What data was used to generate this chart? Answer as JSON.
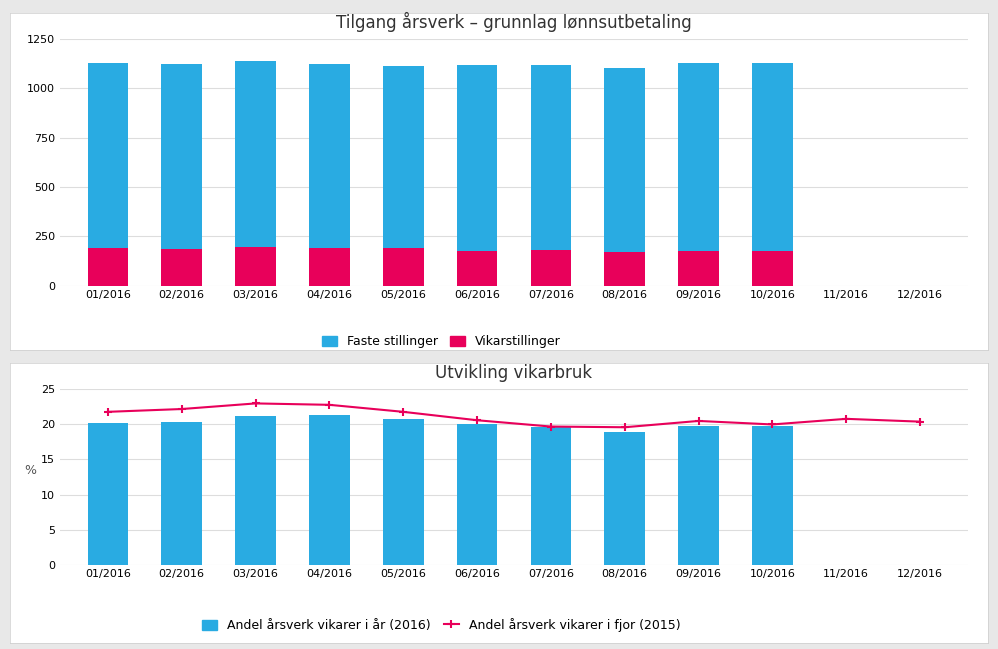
{
  "chart1": {
    "title": "Tilgang årsverk – grunnlag lønnsutbetaling",
    "categories": [
      "01/2016",
      "02/2016",
      "03/2016",
      "04/2016",
      "05/2016",
      "06/2016",
      "07/2016",
      "08/2016",
      "09/2016",
      "10/2016",
      "11/2016",
      "12/2016"
    ],
    "faste": [
      940,
      940,
      945,
      935,
      925,
      945,
      940,
      935,
      952,
      955,
      0,
      0
    ],
    "vikar": [
      190,
      185,
      195,
      190,
      190,
      175,
      178,
      170,
      175,
      173,
      0,
      0
    ],
    "ylim": [
      0,
      1250
    ],
    "yticks": [
      0,
      250,
      500,
      750,
      1000,
      1250
    ],
    "bar_color_faste": "#29ABE2",
    "bar_color_vikar": "#E8005A",
    "legend_faste": "Faste stillinger",
    "legend_vikar": "Vikarstillinger",
    "grid_color": "#DDDDDD"
  },
  "chart2": {
    "title": "Utvikling vikarbruk",
    "categories": [
      "01/2016",
      "02/2016",
      "03/2016",
      "04/2016",
      "05/2016",
      "06/2016",
      "07/2016",
      "08/2016",
      "09/2016",
      "10/2016",
      "11/2016",
      "12/2016"
    ],
    "bars_2016": [
      20.2,
      20.3,
      21.2,
      21.3,
      20.8,
      20.0,
      19.7,
      18.9,
      19.8,
      19.8,
      0,
      0
    ],
    "line_2015_y": [
      21.8,
      22.2,
      23.0,
      22.8,
      21.8,
      20.6,
      19.7,
      19.6,
      20.5,
      20.0,
      20.8,
      20.4
    ],
    "ylim": [
      0,
      25
    ],
    "yticks": [
      0,
      5,
      10,
      15,
      20,
      25
    ],
    "bar_color": "#29ABE2",
    "line_color": "#E8005A",
    "ylabel": "%",
    "legend_bar": "Andel årsverk vikarer i år (2016)",
    "legend_line": "Andel årsverk vikarer i fjor (2015)",
    "grid_color": "#DDDDDD"
  },
  "outer_bg": "#E8E8E8",
  "panel_bg": "#FFFFFF"
}
